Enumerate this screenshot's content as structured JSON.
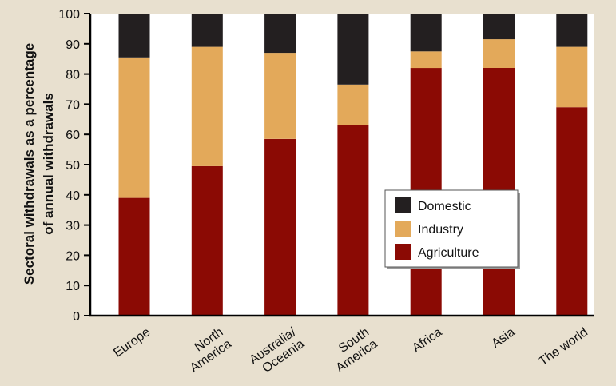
{
  "chart_data": {
    "type": "bar",
    "stacked": true,
    "categories": [
      "Europe",
      "North America",
      "Australia/ Oceania",
      "South America",
      "Africa",
      "Asia",
      "The world"
    ],
    "category_lines": [
      [
        "Europe"
      ],
      [
        "North",
        "America"
      ],
      [
        "Australia/",
        "Oceania"
      ],
      [
        "South",
        "America"
      ],
      [
        "Africa"
      ],
      [
        "Asia"
      ],
      [
        "The world"
      ]
    ],
    "series": [
      {
        "name": "Agriculture",
        "color": "#8b0a04",
        "values": [
          39,
          49.5,
          58.5,
          63,
          82,
          82,
          69
        ]
      },
      {
        "name": "Industry",
        "color": "#e3a95a",
        "values": [
          46.5,
          39.5,
          28.5,
          13.5,
          5.5,
          9.5,
          20
        ]
      },
      {
        "name": "Domestic",
        "color": "#231f20",
        "values": [
          14.5,
          11,
          13,
          23.5,
          12.5,
          8.5,
          11
        ]
      }
    ],
    "legend_order": [
      "Domestic",
      "Industry",
      "Agriculture"
    ],
    "legend_position": "lower-right",
    "ylabel_lines": [
      "Sectoral withdrawals as a percentage",
      "of annual withdrawals"
    ],
    "ylim": [
      0,
      100
    ],
    "yticks": [
      0,
      10,
      20,
      30,
      40,
      50,
      60,
      70,
      80,
      90,
      100
    ],
    "grid": false,
    "background_color": "#e8e0cf",
    "plot_background_color": "#ffffff"
  }
}
